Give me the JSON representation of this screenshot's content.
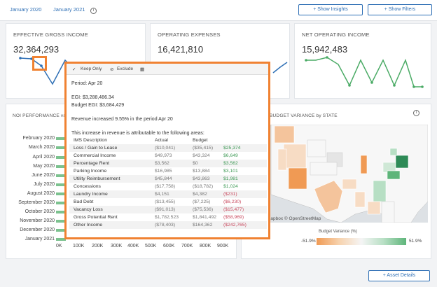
{
  "topbar": {
    "period_a": "January 2020",
    "period_b": "January 2021",
    "info_icon": "i",
    "show_insights": "+ Show Insights",
    "show_filters": "+ Show Filters"
  },
  "kpis": [
    {
      "title": "EFFECTIVE GROSS INCOME",
      "value": "32,364,293"
    },
    {
      "title": "OPERATING EXPENSES",
      "value": "16,421,810"
    },
    {
      "title": "NET OPERATING INCOME",
      "value": "15,942,483"
    }
  ],
  "noi": {
    "title": "NOI PERFORMANCE vs",
    "months": [
      "February 2020",
      "March 2020",
      "April 2020",
      "May 2020",
      "June 2020",
      "July 2020",
      "August 2020",
      "September 2020",
      "October 2020",
      "November 2020",
      "December 2020",
      "January 2021"
    ],
    "ticks": [
      "0K",
      "100K",
      "200K",
      "300K",
      "400K",
      "500K",
      "600K",
      "700K",
      "800K",
      "900K"
    ]
  },
  "map": {
    "title": "BUDGET VARIANCE by STATE",
    "info_icon": "i",
    "attribution": "Mapbox © OpenStreetMap",
    "legend_title": "Budget Variance (%)",
    "legend_min": "-51.9%",
    "legend_max": "51.9%",
    "colors": {
      "negative": "#f09a54",
      "positive": "#5eb57a"
    }
  },
  "asset_details": "+ Asset Details",
  "tooltip": {
    "toolbar": {
      "keep_only": "Keep Only",
      "exclude": "Exclude"
    },
    "period": "Period:  Apr 20",
    "egi": "EGI: $3,288,486.34",
    "budget_egi": "Budget EGI:  $3,684,429",
    "revenue_note": "Revenue increased 9.55% in the period Apr 20",
    "attribution_note": "This increase in revenue is attributable to the following areas:",
    "header": {
      "desc": "IMS Description",
      "actual": "Actual",
      "budget": "Budget",
      "variance": ""
    },
    "rows": [
      {
        "desc": "Loss / Gain to Lease",
        "actual": "($10,041)",
        "budget": "($35,415)",
        "variance": "$25,374",
        "sign": "pos"
      },
      {
        "desc": "Commercial Income",
        "actual": "$49,973",
        "budget": "$43,324",
        "variance": "$6,649",
        "sign": "pos"
      },
      {
        "desc": "Percentage Rent",
        "actual": "$3,562",
        "budget": "$0",
        "variance": "$3,562",
        "sign": "pos"
      },
      {
        "desc": "Parking Income",
        "actual": "$16,985",
        "budget": "$13,884",
        "variance": "$3,101",
        "sign": "pos"
      },
      {
        "desc": "Utility Reimbursement",
        "actual": "$45,844",
        "budget": "$43,863",
        "variance": "$1,981",
        "sign": "pos"
      },
      {
        "desc": "Concessions",
        "actual": "($17,758)",
        "budget": "($18,782)",
        "variance": "$1,024",
        "sign": "pos"
      },
      {
        "desc": "Laundry Income",
        "actual": "$4,151",
        "budget": "$4,382",
        "variance": "($231)",
        "sign": "neg"
      },
      {
        "desc": "Bad Debt",
        "actual": "($13,455)",
        "budget": "($7,225)",
        "variance": "($6,230)",
        "sign": "neg"
      },
      {
        "desc": "Vacancy Loss",
        "actual": "($91,013)",
        "budget": "($75,536)",
        "variance": "($15,477)",
        "sign": "neg"
      },
      {
        "desc": "Gross Potential Rent",
        "actual": "$1,782,523",
        "budget": "$1,841,492",
        "variance": "($58,969)",
        "sign": "neg"
      },
      {
        "desc": "Other Income",
        "actual": "($78,403)",
        "budget": "$164,362",
        "variance": "($242,765)",
        "sign": "neg"
      }
    ]
  }
}
